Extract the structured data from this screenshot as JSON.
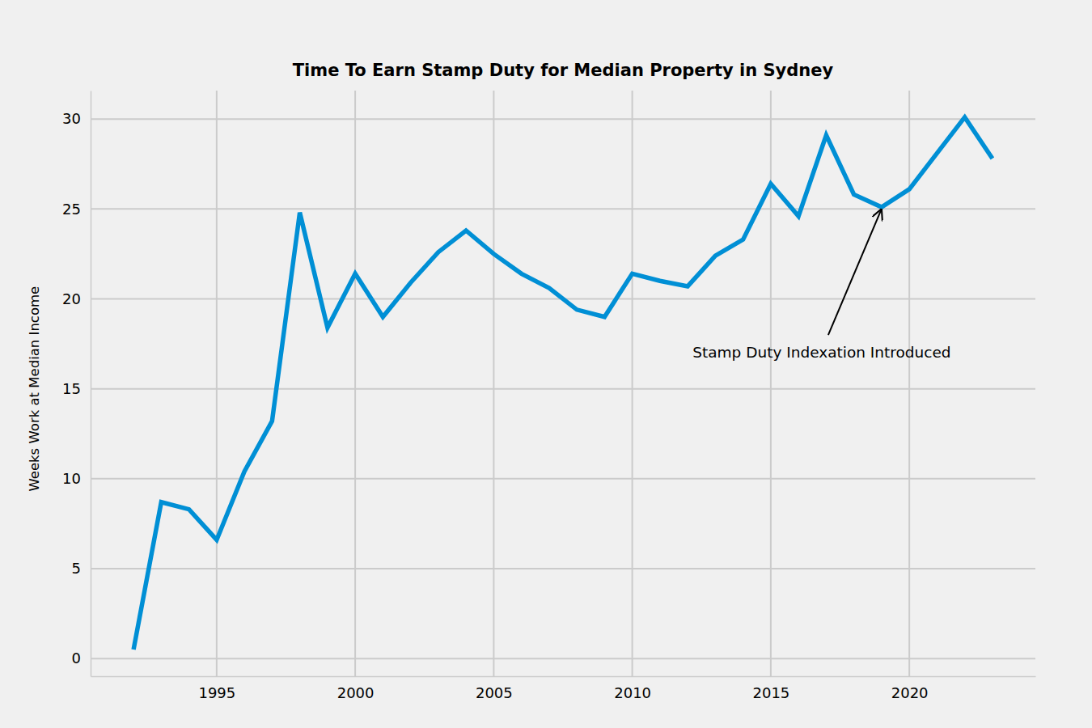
{
  "chart_data": {
    "type": "line",
    "title": "Time To Earn Stamp Duty for Median Property in Sydney",
    "y_label": "Weeks Work at Median Income",
    "x": [
      1992,
      1993,
      1994,
      1995,
      1996,
      1997,
      1998,
      1999,
      2000,
      2001,
      2002,
      2003,
      2004,
      2005,
      2006,
      2007,
      2008,
      2009,
      2010,
      2011,
      2012,
      2013,
      2014,
      2015,
      2016,
      2017,
      2018,
      2019,
      2020,
      2021,
      2022,
      2023
    ],
    "values": [
      0.5,
      8.7,
      8.3,
      6.6,
      10.4,
      13.2,
      24.8,
      18.4,
      21.4,
      19.0,
      20.9,
      22.6,
      23.8,
      22.5,
      21.4,
      20.6,
      19.4,
      19.0,
      21.4,
      21.0,
      20.7,
      22.4,
      23.3,
      26.4,
      24.6,
      29.1,
      25.8,
      25.1,
      26.1,
      28.1,
      30.1,
      27.8
    ],
    "color": "#008fd5",
    "xlim": [
      1990.45,
      2024.55
    ],
    "xticks": [
      1995,
      2000,
      2005,
      2010,
      2015,
      2020
    ],
    "ylim": [
      -0.98,
      31.58
    ],
    "yticks": [
      0,
      5,
      10,
      15,
      20,
      25,
      30
    ],
    "grid": true,
    "annotations": [
      {
        "text": "Stamp Duty Indexation Introduced",
        "x": 2019,
        "y": 25.1
      }
    ]
  }
}
